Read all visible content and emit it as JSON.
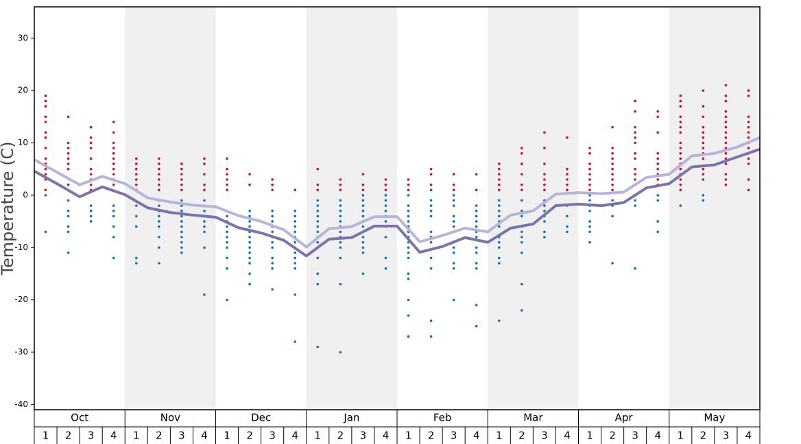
{
  "chart_data": {
    "type": "scatter",
    "y_label": "Temperature (C)",
    "ylim": [
      -41,
      36
    ],
    "yticks": [
      -40,
      -30,
      -20,
      -10,
      0,
      10,
      20,
      30
    ],
    "months": [
      "Oct",
      "Nov",
      "Dec",
      "Jan",
      "Feb",
      "Mar",
      "Apr",
      "May"
    ],
    "weeks": [
      "1",
      "2",
      "3",
      "4"
    ],
    "shade_color": "#f0f0f0",
    "lines": [
      {
        "color": "#b9b4d6",
        "values": [
          6.8,
          4.4,
          2.0,
          3.6,
          2.2,
          -0.5,
          -1.3,
          -1.9,
          -2.2,
          -3.9,
          -5.0,
          -6.6,
          -9.9,
          -6.4,
          -6.0,
          -4.1,
          -4.1,
          -8.9,
          -7.7,
          -6.3,
          -7.0,
          -3.8,
          -3.0,
          0.2,
          0.5,
          0.3,
          0.6,
          3.4,
          4.0,
          7.5,
          8.0,
          9.2,
          11.0
        ]
      },
      {
        "color": "#7d72aa",
        "values": [
          4.6,
          2.2,
          -0.3,
          1.6,
          0.1,
          -2.4,
          -3.3,
          -3.8,
          -4.2,
          -6.2,
          -7.2,
          -8.6,
          -11.6,
          -8.4,
          -8.1,
          -5.9,
          -5.9,
          -10.9,
          -9.8,
          -8.1,
          -9.0,
          -6.3,
          -5.5,
          -2.0,
          -1.7,
          -2.0,
          -1.4,
          1.4,
          2.2,
          5.4,
          5.8,
          7.3,
          8.8
        ]
      }
    ],
    "dots": [
      {
        "color": "#c8102e",
        "values": [
          [
            19,
            18,
            17,
            15,
            14,
            12,
            11,
            9,
            7,
            6,
            5,
            4,
            3,
            1
          ],
          [
            15,
            10,
            9,
            8,
            7,
            6,
            5,
            2
          ],
          [
            13,
            11,
            10,
            9,
            7,
            5,
            4,
            3,
            2,
            1
          ],
          [
            14,
            12,
            10,
            9,
            8,
            7,
            6,
            5,
            4,
            3,
            2
          ],
          [
            7,
            6,
            5,
            4,
            3,
            2,
            1
          ],
          [
            7,
            6,
            5,
            4,
            3,
            2,
            1
          ],
          [
            6,
            5,
            4,
            3,
            2,
            1
          ],
          [
            7,
            6,
            4,
            2,
            1
          ],
          [
            7,
            5,
            4,
            3,
            2,
            1
          ],
          [
            4,
            2
          ],
          [
            3,
            2,
            1
          ],
          [
            1
          ],
          [
            5,
            2,
            1
          ],
          [
            3,
            2,
            1
          ],
          [
            4,
            2,
            1
          ],
          [
            3,
            2,
            1
          ],
          [
            3,
            2,
            1
          ],
          [
            5,
            4,
            2,
            1
          ],
          [
            4,
            2,
            1
          ],
          [
            4,
            1
          ],
          [
            6,
            5,
            4,
            3,
            2,
            1
          ],
          [
            9,
            8,
            6,
            4,
            2,
            1
          ],
          [
            12,
            9,
            6,
            4,
            3,
            2,
            1
          ],
          [
            11,
            5,
            4,
            3,
            2,
            1
          ],
          [
            9,
            8,
            6,
            5,
            4,
            3,
            2,
            1
          ],
          [
            13,
            9,
            8,
            7,
            6,
            5,
            4,
            3,
            2,
            1
          ],
          [
            18,
            16,
            13,
            12,
            11,
            10,
            8,
            7,
            5,
            4,
            3,
            2
          ],
          [
            16,
            15,
            12,
            8,
            7,
            6,
            5,
            4,
            3,
            2
          ],
          [
            19,
            18,
            17,
            15,
            14,
            13,
            12,
            10,
            9,
            8,
            7,
            6,
            5,
            4,
            3,
            2,
            1
          ],
          [
            20,
            17,
            15,
            13,
            12,
            11,
            10,
            9,
            8,
            7,
            5,
            4,
            3
          ],
          [
            21,
            19,
            18,
            16,
            15,
            14,
            13,
            12,
            11,
            10,
            9,
            8,
            7,
            6,
            4,
            3,
            2
          ],
          [
            20,
            19,
            15,
            14,
            13,
            12,
            11,
            10,
            9,
            8,
            7,
            6,
            3,
            1
          ]
        ]
      },
      {
        "color": "#0b72b5",
        "values": [
          [
            0,
            -7
          ],
          [
            -1,
            -3,
            -4,
            -6,
            -7,
            -11
          ],
          [
            -2,
            -3,
            -4,
            -5
          ],
          [
            -2,
            -3,
            -4,
            -6,
            -8,
            -12
          ],
          [
            -2,
            -4,
            -6,
            -12,
            -13
          ],
          [
            -1,
            -2,
            -3,
            -4,
            -5,
            -6,
            -8,
            -10,
            -13
          ],
          [
            -1,
            -2,
            -3,
            -4,
            -5,
            -6,
            -7,
            -8,
            -9,
            -10,
            -11
          ],
          [
            -1,
            -2,
            -3,
            -4,
            -5,
            -6,
            -7,
            -10,
            -19
          ],
          [
            -3,
            -4,
            -5,
            -6,
            -7,
            -8,
            -9,
            -10,
            -12,
            -14,
            -20
          ],
          [
            -3,
            -4,
            -5,
            -6,
            -7,
            -8,
            -9,
            -10,
            -11,
            -12,
            -13,
            -15,
            -17
          ],
          [
            -3,
            -4,
            -5,
            -6,
            -7,
            -8,
            -9,
            -10,
            -12,
            -13,
            -14,
            -18
          ],
          [
            -3,
            -4,
            -5,
            -6,
            -7,
            -8,
            -9,
            -10,
            -11,
            -12,
            -13,
            -14,
            -19,
            -28
          ],
          [
            -1,
            -2,
            -3,
            -4,
            -5,
            -6,
            -7,
            -8,
            -9,
            -10,
            -12,
            -15,
            -17,
            -29
          ],
          [
            -1,
            -2,
            -3,
            -4,
            -5,
            -6,
            -7,
            -8,
            -9,
            -10,
            -12,
            -17,
            -30
          ],
          [
            0,
            -1,
            -2,
            -3,
            -4,
            -5,
            -6,
            -7,
            -8,
            -9,
            -10,
            -11,
            -15
          ],
          [
            0,
            -1,
            -2,
            -3,
            -4,
            -5,
            -6,
            -8,
            -12,
            -14
          ],
          [
            0,
            -2,
            -3,
            -4,
            -5,
            -6,
            -7,
            -8,
            -9,
            -10,
            -11,
            -12,
            -15,
            -16,
            -20,
            -23,
            -27
          ],
          [
            -1,
            -2,
            -3,
            -4,
            -7,
            -8,
            -9,
            -12,
            -14,
            -24,
            -27
          ],
          [
            0,
            -1,
            -2,
            -4,
            -5,
            -6,
            -7,
            -9,
            -10,
            -11,
            -13,
            -14,
            -20
          ],
          [
            -2,
            -3,
            -4,
            -5,
            -6,
            -7,
            -8,
            -10,
            -11,
            -13,
            -14,
            -21,
            -25
          ],
          [
            -1,
            -2,
            -3,
            -4,
            -5,
            -6,
            -8,
            -9,
            -10,
            -12,
            -13,
            -24
          ],
          [
            -1,
            -3,
            -4,
            -6,
            -7,
            -8,
            -9,
            -11,
            -17,
            -22
          ],
          [
            -1,
            -2,
            -3,
            -4,
            -5,
            -7,
            -8
          ],
          [
            -2,
            -4,
            -6,
            -7
          ],
          [
            0,
            -1,
            -2,
            -3,
            -5,
            -6,
            -7,
            -9
          ],
          [
            -1,
            -2,
            -4,
            -13
          ],
          [
            -1,
            -2,
            -14
          ],
          [
            0,
            -1,
            -5,
            -7
          ],
          [
            -2
          ],
          [
            0,
            -1
          ],
          [],
          []
        ]
      }
    ]
  }
}
